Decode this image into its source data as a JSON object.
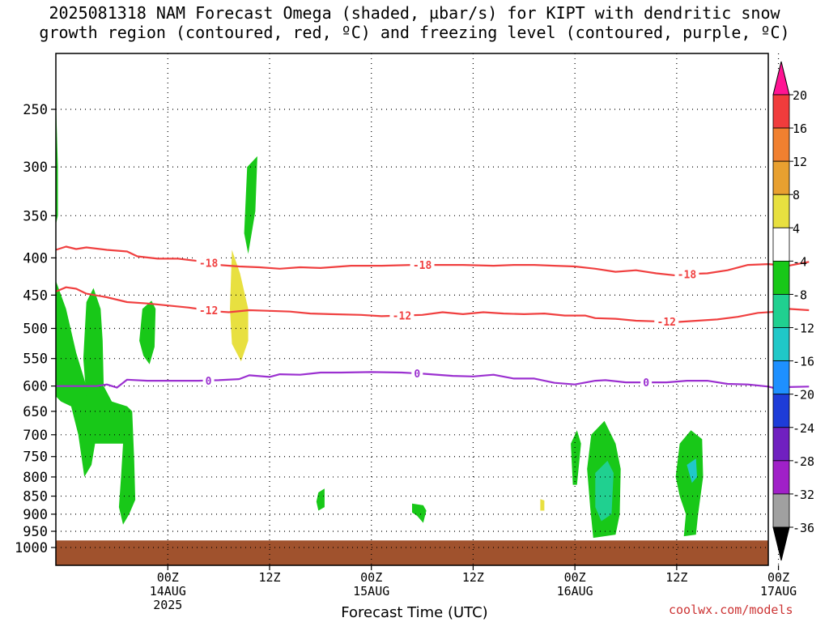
{
  "title": {
    "line1": "2025081318 NAM Forecast Omega (shaded, µbar/s) for KIPT with dendritic snow",
    "line2": "growth region (contoured, red, ºC) and freezing level (contoured, purple, ºC)"
  },
  "credit": "coolwx.com/models",
  "chart_data": {
    "type": "heatmap",
    "xlabel": "Forecast Time (UTC)",
    "ylabel": "",
    "x_range_hours": [
      -5,
      65
    ],
    "y_axis": {
      "scale": "pressure (reversed)",
      "range": [
        200,
        1040
      ],
      "ticks": [
        250,
        300,
        350,
        400,
        450,
        500,
        550,
        600,
        650,
        700,
        750,
        800,
        850,
        900,
        950,
        1000
      ]
    },
    "x_ticks": [
      {
        "hour": 6,
        "label": "00Z",
        "date": "14AUG",
        "year": "2025"
      },
      {
        "hour": 16,
        "label": "12Z",
        "date": "",
        "year": ""
      },
      {
        "hour": 26,
        "label": "00Z",
        "date": "15AUG",
        "year": ""
      },
      {
        "hour": 36,
        "label": "12Z",
        "date": "",
        "year": ""
      },
      {
        "hour": 46,
        "label": "00Z",
        "date": "16AUG",
        "year": ""
      },
      {
        "hour": 56,
        "label": "12Z",
        "date": "",
        "year": ""
      },
      {
        "hour": 66,
        "label": "00Z",
        "date": "17AUG",
        "year": ""
      }
    ],
    "grid": true,
    "colorbar": {
      "labels": [
        "20",
        "16",
        "12",
        "8",
        "4",
        "-4",
        "-8",
        "-12",
        "-16",
        "-20",
        "-24",
        "-28",
        "-32",
        "-36"
      ],
      "colors": [
        "#ff1493",
        "#f03c3c",
        "#f08030",
        "#e8a030",
        "#e8e040",
        "#ffffff",
        "#18c818",
        "#20d090",
        "#20c8c8",
        "#1e90ff",
        "#1e3cd8",
        "#7020c0",
        "#a020c8",
        "#a0a0a0",
        "#000000"
      ]
    },
    "contours": [
      {
        "name": "-18",
        "color": "#f04040",
        "labels_at_hours": [
          10,
          31,
          57
        ],
        "points": [
          [
            -5,
            390
          ],
          [
            -4,
            386
          ],
          [
            -3,
            389
          ],
          [
            -2,
            387
          ],
          [
            0,
            390
          ],
          [
            2,
            392
          ],
          [
            3,
            398
          ],
          [
            5,
            401
          ],
          [
            7,
            401
          ],
          [
            9,
            404
          ],
          [
            11,
            409
          ],
          [
            13,
            411
          ],
          [
            15,
            412
          ],
          [
            17,
            414
          ],
          [
            19,
            412
          ],
          [
            21,
            413
          ],
          [
            24,
            410
          ],
          [
            27,
            410
          ],
          [
            30,
            409
          ],
          [
            32,
            409
          ],
          [
            35,
            409
          ],
          [
            38,
            410
          ],
          [
            40,
            409
          ],
          [
            42,
            409
          ],
          [
            44,
            410
          ],
          [
            46,
            411
          ],
          [
            48,
            414
          ],
          [
            50,
            418
          ],
          [
            52,
            416
          ],
          [
            54,
            420
          ],
          [
            56,
            423
          ],
          [
            57,
            421
          ],
          [
            59,
            420
          ],
          [
            61,
            416
          ],
          [
            63,
            409
          ],
          [
            65,
            408
          ],
          [
            67,
            410
          ],
          [
            69,
            405
          ]
        ]
      },
      {
        "name": "-12",
        "color": "#f04040",
        "labels_at_hours": [
          10,
          29,
          55
        ],
        "points": [
          [
            -5,
            445
          ],
          [
            -4,
            439
          ],
          [
            -3,
            441
          ],
          [
            -2,
            448
          ],
          [
            0,
            453
          ],
          [
            2,
            460
          ],
          [
            4,
            462
          ],
          [
            6,
            465
          ],
          [
            8,
            468
          ],
          [
            9,
            470
          ],
          [
            11,
            474
          ],
          [
            12,
            475
          ],
          [
            14,
            472
          ],
          [
            16,
            473
          ],
          [
            18,
            474
          ],
          [
            20,
            477
          ],
          [
            22,
            478
          ],
          [
            25,
            479
          ],
          [
            27,
            481
          ],
          [
            29,
            480
          ],
          [
            31,
            479
          ],
          [
            33,
            475
          ],
          [
            35,
            478
          ],
          [
            37,
            475
          ],
          [
            39,
            477
          ],
          [
            41,
            478
          ],
          [
            43,
            477
          ],
          [
            45,
            480
          ],
          [
            47,
            480
          ],
          [
            48,
            484
          ],
          [
            50,
            485
          ],
          [
            52,
            488
          ],
          [
            54,
            489
          ],
          [
            56,
            490
          ],
          [
            58,
            488
          ],
          [
            60,
            486
          ],
          [
            62,
            482
          ],
          [
            64,
            476
          ],
          [
            66,
            474
          ],
          [
            67,
            470
          ],
          [
            69,
            472
          ]
        ]
      },
      {
        "name": "0",
        "color": "#9b30d0",
        "labels_at_hours": [
          10,
          30.5,
          53
        ],
        "points": [
          [
            -5,
            600
          ],
          [
            -3,
            600
          ],
          [
            -1,
            600
          ],
          [
            0,
            597
          ],
          [
            1,
            603
          ],
          [
            2,
            588
          ],
          [
            4,
            590
          ],
          [
            6,
            590
          ],
          [
            9,
            590
          ],
          [
            11,
            589
          ],
          [
            13,
            587
          ],
          [
            14,
            580
          ],
          [
            16,
            583
          ],
          [
            17,
            578
          ],
          [
            19,
            579
          ],
          [
            21,
            575
          ],
          [
            23,
            575
          ],
          [
            26,
            574
          ],
          [
            29,
            575
          ],
          [
            31,
            577
          ],
          [
            34,
            581
          ],
          [
            36,
            582
          ],
          [
            38,
            579
          ],
          [
            40,
            586
          ],
          [
            42,
            586
          ],
          [
            44,
            594
          ],
          [
            46,
            597
          ],
          [
            48,
            590
          ],
          [
            49,
            589
          ],
          [
            51,
            593
          ],
          [
            53,
            593
          ],
          [
            55,
            593
          ],
          [
            57,
            590
          ],
          [
            59,
            590
          ],
          [
            61,
            596
          ],
          [
            63,
            597
          ],
          [
            65,
            601
          ],
          [
            66,
            606
          ],
          [
            67,
            602
          ],
          [
            69,
            601
          ]
        ]
      }
    ],
    "omega_areas": [
      {
        "color": "#18c818",
        "label": "-4",
        "points": [
          [
            -5,
            240
          ],
          [
            -4.8,
            300
          ],
          [
            -4.8,
            350
          ],
          [
            -5,
            360
          ]
        ]
      },
      {
        "color": "#18c818",
        "label": "-4",
        "points": [
          [
            -5,
            430
          ],
          [
            -4,
            470
          ],
          [
            -3,
            540
          ],
          [
            -2,
            600
          ],
          [
            -1.5,
            650
          ],
          [
            -1,
            700
          ],
          [
            -1.5,
            770
          ],
          [
            -2.2,
            800
          ],
          [
            -2.8,
            700
          ],
          [
            -3.5,
            640
          ],
          [
            -4.5,
            630
          ],
          [
            -5,
            620
          ]
        ]
      },
      {
        "color": "#18c818",
        "label": "-4",
        "points": [
          [
            -2,
            460
          ],
          [
            -1.3,
            440
          ],
          [
            -0.6,
            470
          ],
          [
            -0.4,
            520
          ],
          [
            -0.3,
            600
          ],
          [
            0.5,
            630
          ],
          [
            2,
            640
          ],
          [
            2.5,
            650
          ],
          [
            2.7,
            760
          ],
          [
            2.8,
            860
          ],
          [
            2.2,
            900
          ],
          [
            1.6,
            930
          ],
          [
            1.2,
            880
          ],
          [
            1.4,
            800
          ],
          [
            1.6,
            720
          ],
          [
            0.8,
            720
          ],
          [
            -1.5,
            720
          ],
          [
            -1.9,
            650
          ],
          [
            -2.3,
            550
          ]
        ]
      },
      {
        "color": "#18c818",
        "label": "-4",
        "points": [
          [
            3.5,
            470
          ],
          [
            4.4,
            458
          ],
          [
            4.8,
            470
          ],
          [
            4.7,
            530
          ],
          [
            4.2,
            560
          ],
          [
            3.6,
            545
          ],
          [
            3.2,
            520
          ]
        ]
      },
      {
        "color": "#18c818",
        "label": "-4",
        "points": [
          [
            13.8,
            300
          ],
          [
            14.8,
            290
          ],
          [
            14.6,
            345
          ],
          [
            13.9,
            395
          ],
          [
            13.5,
            370
          ]
        ]
      },
      {
        "color": "#e8e040",
        "label": "4",
        "points": [
          [
            12.3,
            390
          ],
          [
            13.1,
            420
          ],
          [
            13.9,
            470
          ],
          [
            13.9,
            520
          ],
          [
            13.2,
            555
          ],
          [
            12.3,
            525
          ],
          [
            12.1,
            470
          ]
        ]
      },
      {
        "color": "#18c818",
        "label": "-4",
        "points": [
          [
            20.8,
            840
          ],
          [
            21.4,
            830
          ],
          [
            21.4,
            880
          ],
          [
            20.8,
            890
          ],
          [
            20.6,
            865
          ]
        ]
      },
      {
        "color": "#18c818",
        "label": "-4",
        "points": [
          [
            30,
            870
          ],
          [
            31.1,
            875
          ],
          [
            31.4,
            890
          ],
          [
            31.1,
            925
          ],
          [
            30.5,
            905
          ],
          [
            30,
            895
          ]
        ]
      },
      {
        "color": "#e8e040",
        "label": "4",
        "points": [
          [
            42.6,
            858
          ],
          [
            43,
            862
          ],
          [
            43,
            890
          ],
          [
            42.6,
            890
          ]
        ]
      },
      {
        "color": "#18c818",
        "label": "-4",
        "points": [
          [
            45.6,
            720
          ],
          [
            46.2,
            690
          ],
          [
            46.6,
            720
          ],
          [
            46.2,
            820
          ],
          [
            45.8,
            820
          ]
        ]
      },
      {
        "color": "#18c818",
        "label": "-4",
        "points": [
          [
            47.6,
            700
          ],
          [
            48.9,
            670
          ],
          [
            50,
            720
          ],
          [
            50.5,
            780
          ],
          [
            50.4,
            900
          ],
          [
            50,
            960
          ],
          [
            47.8,
            970
          ],
          [
            47.5,
            880
          ],
          [
            47.2,
            780
          ]
        ]
      },
      {
        "color": "#20d090",
        "label": "-8",
        "points": [
          [
            48,
            790
          ],
          [
            49.2,
            760
          ],
          [
            49.8,
            790
          ],
          [
            49.6,
            900
          ],
          [
            48.6,
            920
          ],
          [
            48,
            880
          ]
        ]
      },
      {
        "color": "#18c818",
        "label": "-4",
        "points": [
          [
            56.3,
            720
          ],
          [
            57.4,
            690
          ],
          [
            58.5,
            710
          ],
          [
            58.6,
            800
          ],
          [
            58.1,
            900
          ],
          [
            57.9,
            960
          ],
          [
            56.7,
            965
          ],
          [
            56.9,
            900
          ],
          [
            56.3,
            850
          ],
          [
            55.9,
            800
          ]
        ]
      },
      {
        "color": "#20c8c8",
        "label": "-12",
        "points": [
          [
            57,
            770
          ],
          [
            57.9,
            755
          ],
          [
            58,
            800
          ],
          [
            57.5,
            815
          ]
        ]
      },
      {
        "color": "#ffffff",
        "label": "4",
        "points": [
          [
            55.5,
            1002
          ],
          [
            57.2,
            1015
          ],
          [
            59,
            1002
          ]
        ]
      }
    ],
    "terrain": {
      "color": "#a0522d",
      "top_hpa": 978
    }
  }
}
